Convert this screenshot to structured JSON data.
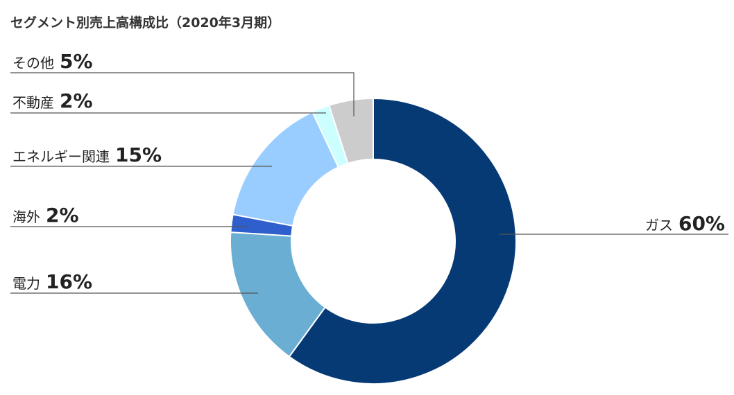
{
  "chart_data": {
    "type": "donut",
    "title": "セグメント別売上高構成比（2020年3月期）",
    "categories": [
      "ガス",
      "電力",
      "海外",
      "エネルギー関連",
      "不動産",
      "その他"
    ],
    "values": [
      60,
      16,
      2,
      15,
      2,
      5
    ],
    "value_labels": [
      "60%",
      "16%",
      "2%",
      "15%",
      "2%",
      "5%"
    ],
    "colors": [
      "#063a75",
      "#6aaed4",
      "#2f5fcc",
      "#99ccff",
      "#ccffff",
      "#cccccc"
    ]
  }
}
